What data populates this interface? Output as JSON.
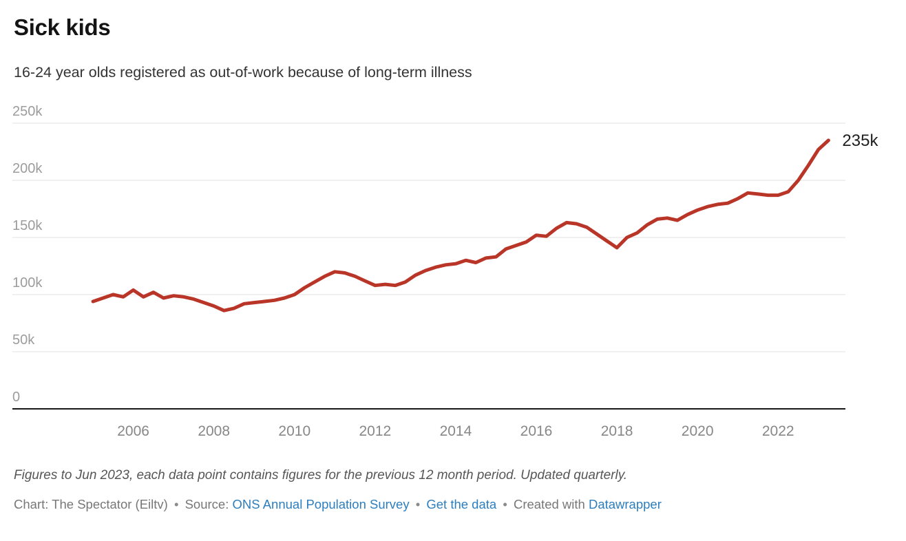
{
  "header": {
    "title": "Sick kids",
    "subtitle": "16-24 year olds registered as out-of-work because of long-term illness"
  },
  "chart_data": {
    "type": "line",
    "title": "Sick kids",
    "subtitle": "16-24 year olds registered as out-of-work because of long-term illness",
    "unit": "thousands",
    "grid": "horizontal",
    "legend": "none",
    "x": [
      2005.0,
      2005.25,
      2005.5,
      2005.75,
      2006.0,
      2006.25,
      2006.5,
      2006.75,
      2007.0,
      2007.25,
      2007.5,
      2007.75,
      2008.0,
      2008.25,
      2008.5,
      2008.75,
      2009.0,
      2009.25,
      2009.5,
      2009.75,
      2010.0,
      2010.25,
      2010.5,
      2010.75,
      2011.0,
      2011.25,
      2011.5,
      2011.75,
      2012.0,
      2012.25,
      2012.5,
      2012.75,
      2013.0,
      2013.25,
      2013.5,
      2013.75,
      2014.0,
      2014.25,
      2014.5,
      2014.75,
      2015.0,
      2015.25,
      2015.5,
      2015.75,
      2016.0,
      2016.25,
      2016.5,
      2016.75,
      2017.0,
      2017.25,
      2017.5,
      2017.75,
      2018.0,
      2018.25,
      2018.5,
      2018.75,
      2019.0,
      2019.25,
      2019.5,
      2019.75,
      2020.0,
      2020.25,
      2020.5,
      2020.75,
      2021.0,
      2021.25,
      2021.5,
      2021.75,
      2022.0,
      2022.25,
      2022.5,
      2022.75,
      2023.0,
      2023.25
    ],
    "series": [
      {
        "name": "16-24 year olds out-of-work because of long-term illness (thousands)",
        "values": [
          94,
          97,
          100,
          98,
          104,
          98,
          102,
          97,
          99,
          98,
          96,
          93,
          90,
          86,
          88,
          92,
          93,
          94,
          95,
          97,
          100,
          106,
          111,
          116,
          120,
          119,
          116,
          112,
          108,
          109,
          108,
          111,
          117,
          121,
          124,
          126,
          127,
          130,
          128,
          132,
          133,
          140,
          143,
          146,
          152,
          151,
          158,
          163,
          162,
          159,
          153,
          147,
          141,
          150,
          154,
          161,
          166,
          167,
          165,
          170,
          174,
          177,
          179,
          180,
          184,
          189,
          188,
          187,
          187,
          190,
          200,
          213,
          227,
          235
        ]
      }
    ],
    "ylim": [
      0,
      250
    ],
    "x_domain": [
      2003.0,
      2023.67
    ],
    "yticks": {
      "values": [
        0,
        50,
        100,
        150,
        200,
        250
      ],
      "labels": [
        "0",
        "50k",
        "100k",
        "150k",
        "200k",
        "250k"
      ]
    },
    "xticks": {
      "values": [
        2006,
        2008,
        2010,
        2012,
        2014,
        2016,
        2018,
        2020,
        2022
      ],
      "labels": [
        "2006",
        "2008",
        "2010",
        "2012",
        "2014",
        "2016",
        "2018",
        "2020",
        "2022"
      ]
    },
    "end_label": "235k"
  },
  "footer": {
    "note": "Figures to Jun 2023, each data point contains figures for the previous 12 month period. Updated quarterly.",
    "byline": [
      {
        "text": "Chart: The Spectator (Eiltv)"
      },
      {
        "text": "•"
      },
      {
        "text": "Source:"
      },
      {
        "text": "ONS Annual Population Survey"
      },
      {
        "text": "•"
      },
      {
        "text": "Get the data"
      },
      {
        "text": "•"
      },
      {
        "text": "Created with"
      },
      {
        "text": "Datawrapper"
      }
    ]
  },
  "colors": {
    "line_red": "#b93528",
    "link_blue": "#2d7ebe",
    "grid_gray": "#e2e2e2",
    "baseline_black": "#161616",
    "ytick_gray": "#9c9c9c",
    "xtick_gray": "#878787",
    "end_label_dark": "#1f1f1f"
  }
}
